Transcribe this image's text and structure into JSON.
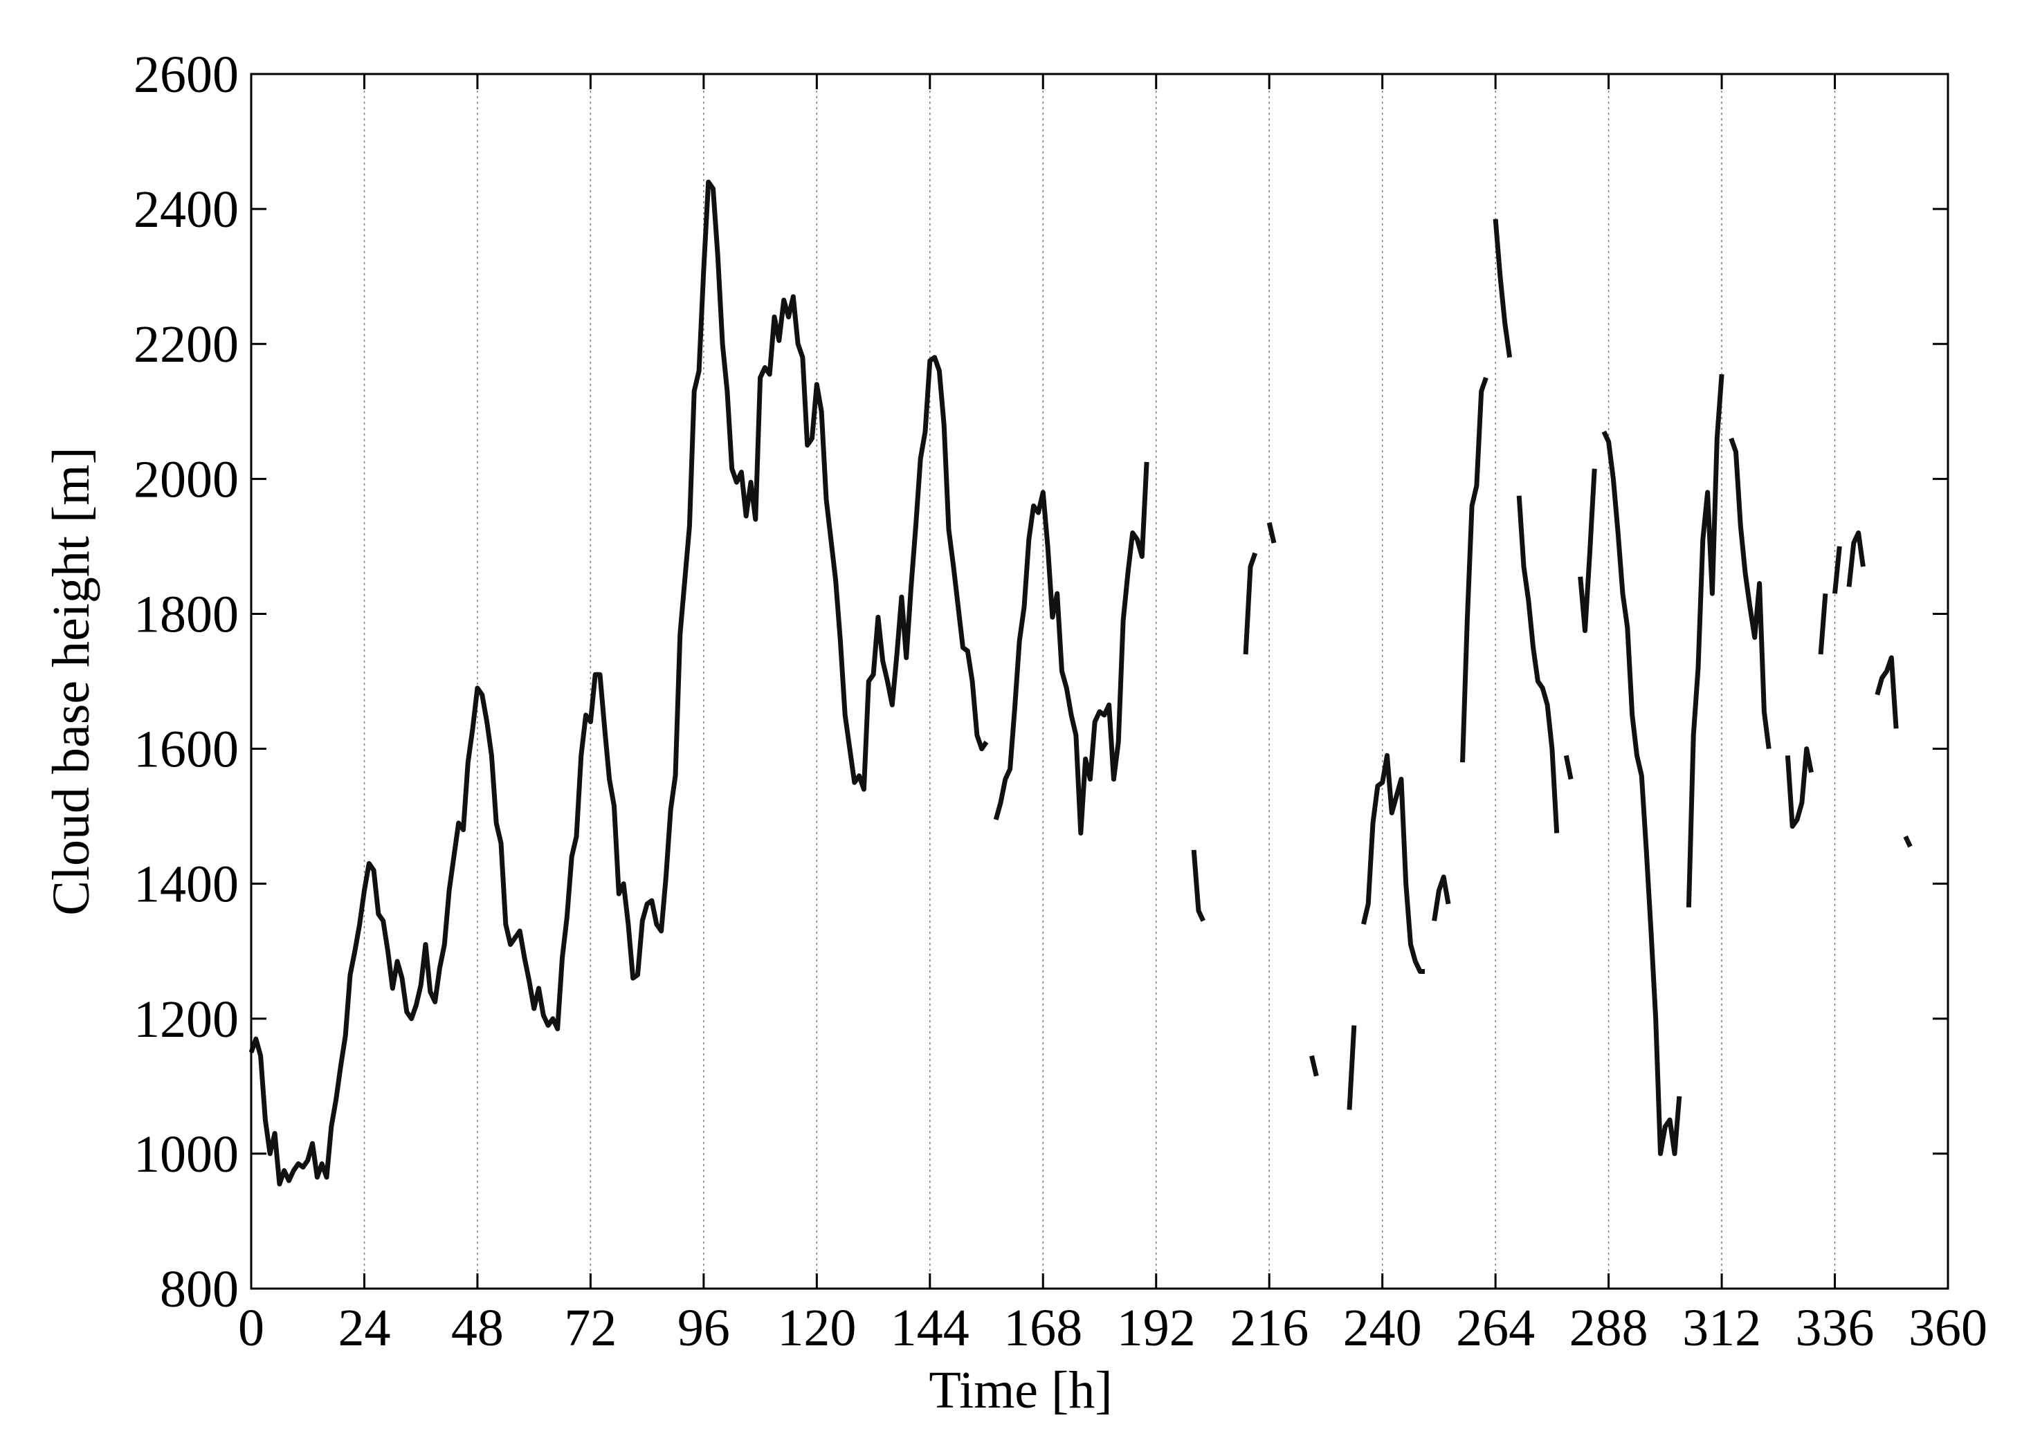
{
  "chart_data": {
    "type": "line",
    "xlabel": "Time [h]",
    "ylabel": "Cloud base height [m]",
    "xlim": [
      0,
      360
    ],
    "ylim": [
      800,
      2600
    ],
    "xticks": [
      0,
      24,
      48,
      72,
      96,
      120,
      144,
      168,
      192,
      216,
      240,
      264,
      288,
      312,
      336,
      360
    ],
    "yticks": [
      800,
      1000,
      1200,
      1400,
      1600,
      1800,
      2000,
      2200,
      2400,
      2600
    ],
    "grid": "x",
    "color": "#111111",
    "x": [
      0,
      1,
      2,
      3,
      4,
      5,
      6,
      7,
      8,
      9,
      10,
      11,
      12,
      13,
      14,
      15,
      16,
      17,
      18,
      19,
      20,
      21,
      22,
      23,
      24,
      25,
      26,
      27,
      28,
      29,
      30,
      31,
      32,
      33,
      34,
      35,
      36,
      37,
      38,
      39,
      40,
      41,
      42,
      43,
      44,
      45,
      46,
      47,
      48,
      49,
      50,
      51,
      52,
      53,
      54,
      55,
      56,
      57,
      58,
      59,
      60,
      61,
      62,
      63,
      64,
      65,
      66,
      67,
      68,
      69,
      70,
      71,
      72,
      73,
      74,
      75,
      76,
      77,
      78,
      79,
      80,
      81,
      82,
      83,
      84,
      85,
      86,
      87,
      88,
      89,
      90,
      91,
      92,
      93,
      94,
      95,
      96,
      97,
      98,
      99,
      100,
      101,
      102,
      103,
      104,
      105,
      106,
      107,
      108,
      109,
      110,
      111,
      112,
      113,
      114,
      115,
      116,
      117,
      118,
      119,
      120,
      121,
      122,
      123,
      124,
      125,
      126,
      127,
      128,
      129,
      130,
      131,
      132,
      133,
      134,
      135,
      136,
      137,
      138,
      139,
      140,
      141,
      142,
      143,
      144,
      145,
      146,
      147,
      148,
      149,
      150,
      151,
      152,
      153,
      154,
      155,
      156,
      157,
      158,
      159,
      160,
      161,
      162,
      163,
      164,
      165,
      166,
      167,
      168,
      169,
      170,
      171,
      172,
      173,
      174,
      175,
      176,
      177,
      178,
      179,
      180,
      181,
      182,
      183,
      184,
      185,
      186,
      187,
      188,
      189,
      190,
      195,
      200,
      201,
      202,
      207,
      211,
      212,
      213,
      215,
      216,
      217,
      220,
      225,
      226,
      230,
      233,
      234,
      235,
      236,
      237,
      238,
      239,
      240,
      241,
      242,
      243,
      244,
      245,
      246,
      247,
      248,
      249,
      250,
      251,
      252,
      253,
      254,
      255,
      257,
      258,
      259,
      260,
      261,
      262,
      263,
      264,
      265,
      266,
      267,
      268,
      269,
      270,
      271,
      272,
      273,
      274,
      275,
      276,
      277,
      278,
      279,
      280,
      281,
      282,
      283,
      284,
      285,
      286,
      287,
      288,
      289,
      290,
      291,
      292,
      293,
      294,
      295,
      296,
      297,
      298,
      299,
      300,
      301,
      302,
      303,
      304,
      305,
      306,
      307,
      308,
      309,
      310,
      311,
      312,
      313,
      314,
      315,
      316,
      317,
      318,
      319,
      320,
      321,
      322,
      325,
      326,
      327,
      328,
      329,
      330,
      331,
      332,
      333,
      334,
      335,
      336,
      337,
      338,
      339,
      340,
      341,
      342,
      344,
      345,
      346,
      347,
      348,
      349,
      350,
      351,
      352
    ],
    "values": [
      1150,
      1170,
      1145,
      1050,
      1000,
      1030,
      955,
      975,
      960,
      975,
      985,
      980,
      990,
      1015,
      965,
      985,
      965,
      1040,
      1080,
      1130,
      1175,
      1265,
      1300,
      1340,
      1390,
      1430,
      1420,
      1355,
      1345,
      1300,
      1245,
      1285,
      1260,
      1210,
      1200,
      1220,
      1250,
      1310,
      1240,
      1225,
      1275,
      1310,
      1390,
      1440,
      1490,
      1480,
      1580,
      1630,
      1690,
      1680,
      1640,
      1590,
      1490,
      1460,
      1340,
      1310,
      1320,
      1330,
      1290,
      1255,
      1215,
      1245,
      1205,
      1190,
      1200,
      1185,
      1290,
      1350,
      1440,
      1470,
      1590,
      1650,
      1640,
      1710,
      1710,
      1630,
      1555,
      1515,
      1385,
      1400,
      1340,
      1260,
      1265,
      1345,
      1370,
      1375,
      1340,
      1330,
      1410,
      1510,
      1560,
      1770,
      1850,
      1930,
      2130,
      2160,
      2310,
      2440,
      2430,
      2330,
      2200,
      2130,
      2015,
      1995,
      2010,
      1945,
      1995,
      1940,
      2150,
      2165,
      2155,
      2240,
      2205,
      2265,
      2240,
      2270,
      2200,
      2180,
      2050,
      2060,
      2140,
      2100,
      1970,
      1910,
      1850,
      1760,
      1650,
      1600,
      1550,
      1560,
      1540,
      1700,
      1710,
      1795,
      1730,
      1700,
      1665,
      1740,
      1825,
      1735,
      1840,
      1930,
      2030,
      2070,
      2175,
      2180,
      2160,
      2080,
      1925,
      1870,
      1810,
      1750,
      1745,
      1700,
      1620,
      1600,
      1610,
      null,
      1495,
      1520,
      1555,
      1570,
      1660,
      1760,
      1810,
      1910,
      1960,
      1950,
      1980,
      1900,
      1795,
      1830,
      1715,
      1690,
      1650,
      1620,
      1475,
      1585,
      1555,
      1640,
      1655,
      1650,
      1665,
      1555,
      1610,
      1790,
      1860,
      1920,
      1910,
      1885,
      2025,
      null,
      1450,
      1360,
      1345,
      null,
      1740,
      1870,
      1890,
      null,
      1935,
      1905,
      null,
      1145,
      1115,
      null,
      1065,
      1190,
      null,
      1340,
      1370,
      1490,
      1545,
      1550,
      1590,
      1505,
      1530,
      1555,
      1400,
      1310,
      1285,
      1270,
      1270,
      null,
      1345,
      1390,
      1410,
      1370,
      null,
      1580,
      1790,
      1960,
      1990,
      2130,
      2150,
      null,
      2385,
      2300,
      2230,
      2180,
      null,
      1975,
      1870,
      1820,
      1750,
      1700,
      1690,
      1665,
      1600,
      1475,
      null,
      1590,
      1555,
      null,
      1855,
      1775,
      1890,
      2015,
      null,
      2070,
      2055,
      2000,
      1920,
      1830,
      1780,
      1650,
      1590,
      1560,
      1450,
      1330,
      1200,
      1000,
      1040,
      1050,
      1000,
      1085,
      null,
      1365,
      1620,
      1720,
      1910,
      1980,
      1830,
      2060,
      2155,
      null,
      2060,
      2040,
      1930,
      1860,
      1810,
      1765,
      1845,
      1655,
      1600,
      null,
      1590,
      1485,
      1495,
      1520,
      1600,
      1565,
      null,
      1740,
      1830,
      null,
      1830,
      1900,
      null,
      1840,
      1905,
      1920,
      1870,
      null,
      1680,
      1705,
      1715,
      1735,
      1630,
      null,
      1470,
      1455
    ]
  }
}
